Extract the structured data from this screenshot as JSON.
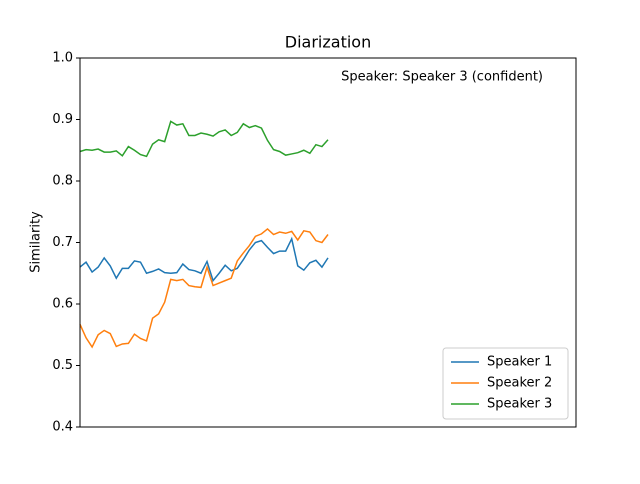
{
  "chart_data": {
    "type": "line",
    "title": "Diarization",
    "ylabel": "Similarity",
    "annotation": {
      "text": "Speaker: Speaker 3 (confident)",
      "color": "#2ca02c"
    },
    "xlim": [
      0,
      82
    ],
    "ylim": [
      0.4,
      1.0
    ],
    "yticks": [
      0.4,
      0.5,
      0.6,
      0.7,
      0.8,
      0.9,
      {
        "value": 1,
        "label": "1.0"
      }
    ],
    "legend": "lower right",
    "series": [
      {
        "name": "Speaker 1",
        "color": "#1f77b4",
        "values": [
          0.66,
          0.668,
          0.652,
          0.66,
          0.675,
          0.662,
          0.642,
          0.658,
          0.658,
          0.67,
          0.668,
          0.65,
          0.653,
          0.657,
          0.651,
          0.65,
          0.651,
          0.665,
          0.656,
          0.654,
          0.65,
          0.669,
          0.638,
          0.65,
          0.663,
          0.654,
          0.658,
          0.672,
          0.688,
          0.7,
          0.703,
          0.692,
          0.682,
          0.686,
          0.686,
          0.706,
          0.662,
          0.655,
          0.667,
          0.671,
          0.66,
          0.675
        ]
      },
      {
        "name": "Speaker 2",
        "color": "#ff7f0e",
        "values": [
          0.567,
          0.545,
          0.53,
          0.55,
          0.557,
          0.552,
          0.531,
          0.535,
          0.536,
          0.551,
          0.544,
          0.54,
          0.577,
          0.584,
          0.603,
          0.64,
          0.638,
          0.64,
          0.63,
          0.628,
          0.627,
          0.66,
          0.63,
          0.634,
          0.638,
          0.642,
          0.67,
          0.683,
          0.695,
          0.71,
          0.714,
          0.722,
          0.713,
          0.717,
          0.715,
          0.718,
          0.704,
          0.719,
          0.717,
          0.703,
          0.7,
          0.713
        ]
      },
      {
        "name": "Speaker 3",
        "color": "#2ca02c",
        "values": [
          0.848,
          0.851,
          0.85,
          0.852,
          0.847,
          0.847,
          0.849,
          0.841,
          0.856,
          0.85,
          0.843,
          0.84,
          0.86,
          0.867,
          0.864,
          0.897,
          0.891,
          0.893,
          0.874,
          0.874,
          0.878,
          0.876,
          0.873,
          0.88,
          0.883,
          0.874,
          0.879,
          0.893,
          0.887,
          0.89,
          0.886,
          0.866,
          0.851,
          0.848,
          0.842,
          0.844,
          0.846,
          0.85,
          0.845,
          0.859,
          0.856,
          0.867
        ]
      }
    ]
  }
}
